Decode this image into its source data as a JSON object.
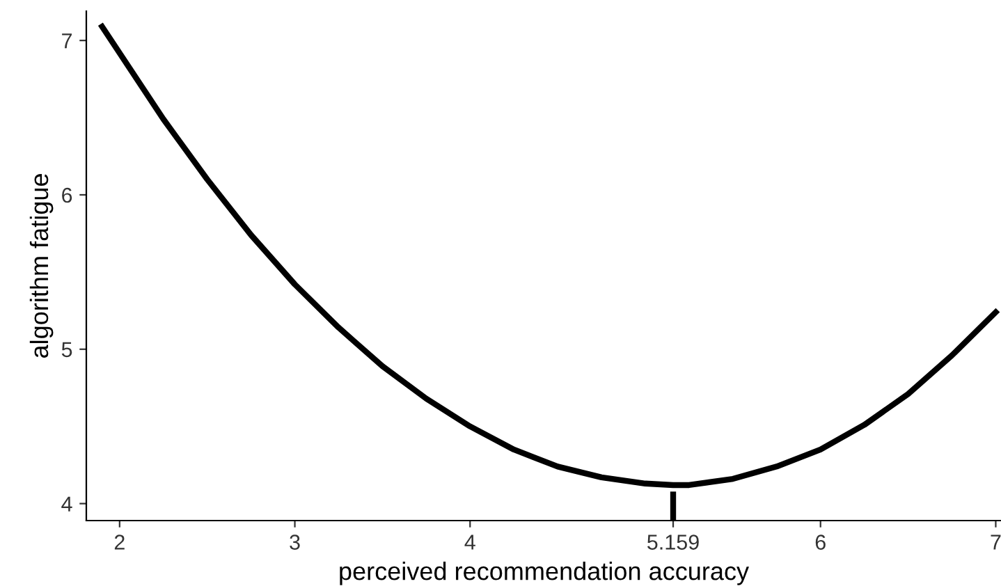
{
  "chart_data": {
    "type": "line",
    "xlabel": "perceived recommendation accuracy",
    "ylabel": "algorithm fatigue",
    "x": [
      1.9,
      2.25,
      2.5,
      2.75,
      3,
      3.25,
      3.5,
      3.75,
      4,
      4.25,
      4.5,
      4.75,
      5,
      5.159,
      5.25,
      5.5,
      5.75,
      6,
      6.25,
      6.5,
      6.75,
      7
    ],
    "series": [
      {
        "color": "#000000",
        "values": [
          7.09,
          6.49,
          6.1,
          5.74,
          5.42,
          5.14,
          4.89,
          4.68,
          4.5,
          4.35,
          4.24,
          4.17,
          4.13,
          4.12,
          4.12,
          4.16,
          4.24,
          4.35,
          4.51,
          4.71,
          4.96,
          5.24
        ]
      },
      {
        "type": "line",
        "color": "#000000",
        "line_style": "dashed",
        "x": [
          5.159,
          5.159
        ],
        "values": [
          3.89,
          4.12
        ]
      }
    ],
    "xlim": [
      1.81,
      7.03
    ],
    "ylim": [
      3.89,
      7.19
    ],
    "xticks": [
      2,
      3,
      4,
      5.159,
      6,
      7
    ],
    "yticks": [
      4,
      5,
      6,
      7
    ],
    "grid": false,
    "legend": false,
    "marker": "none",
    "line_style": "solid"
  }
}
